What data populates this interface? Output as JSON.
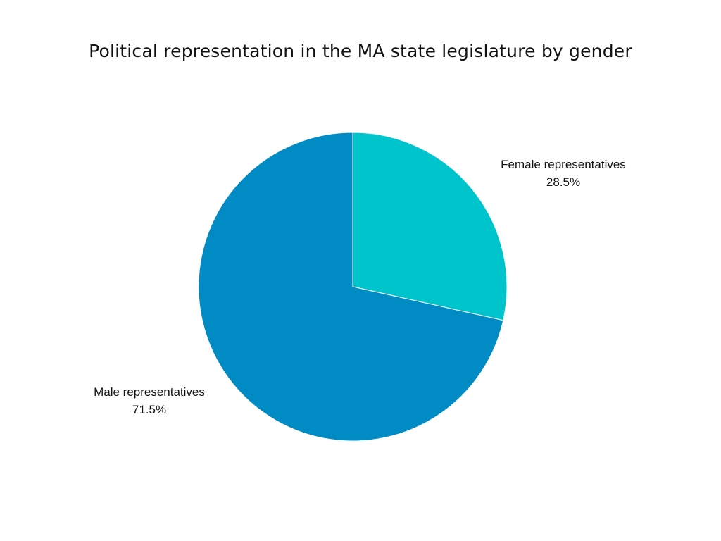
{
  "chart_data": {
    "type": "pie",
    "title": "Political representation in the MA state legislature by gender",
    "slices": [
      {
        "label": "Female representatives",
        "value": 28.5,
        "value_label": "28.5%",
        "color": "#00C4CC"
      },
      {
        "label": "Male representatives",
        "value": 71.5,
        "value_label": "71.5%",
        "color": "#008BC4"
      }
    ],
    "legend": "none",
    "start_angle": "12 o'clock",
    "direction": "clockwise"
  }
}
